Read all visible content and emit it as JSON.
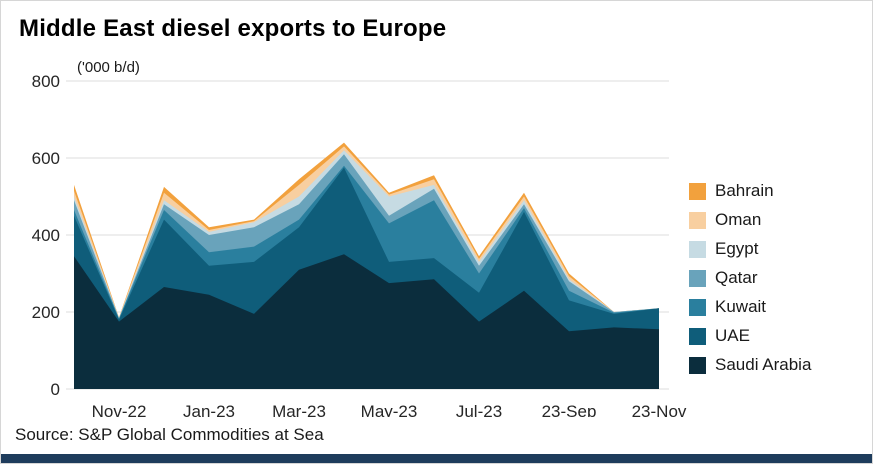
{
  "page": {
    "title": "Middle East diesel exports to Europe",
    "unit_label": "('000 b/d)",
    "source": "Source: S&P Global Commodities at Sea"
  },
  "colors": {
    "footer_bar": "#1e3c5c",
    "gridline": "#dcdcdc",
    "background": "#ffffff"
  },
  "chart_data": {
    "type": "area",
    "stacked": true,
    "title": "Middle East diesel exports to Europe",
    "ylabel": "('000 b/d)",
    "ylim": [
      0,
      800
    ],
    "yticks": [
      0,
      200,
      400,
      600,
      800
    ],
    "grid": true,
    "legend_position": "right",
    "x": [
      "Oct-22",
      "Nov-22",
      "Dec-22",
      "Jan-23",
      "Feb-23",
      "Mar-23",
      "Apr-23",
      "May-23",
      "Jun-23",
      "Jul-23",
      "Aug-23",
      "23-Sep",
      "23-Oct",
      "23-Nov"
    ],
    "x_tick_indices": [
      1,
      3,
      5,
      7,
      9,
      11,
      13
    ],
    "x_tick_labels": [
      "Nov-22",
      "Jan-23",
      "Mar-23",
      "May-23",
      "Jul-23",
      "23-Sep",
      "23-Nov"
    ],
    "series": [
      {
        "name": "Saudi Arabia",
        "color": "#0b2d3d",
        "values": [
          345,
          175,
          265,
          245,
          195,
          310,
          350,
          275,
          285,
          175,
          255,
          150,
          160,
          155
        ]
      },
      {
        "name": "UAE",
        "color": "#0f5d7a",
        "values": [
          105,
          5,
          175,
          75,
          135,
          110,
          225,
          55,
          55,
          75,
          205,
          80,
          35,
          55
        ]
      },
      {
        "name": "Kuwait",
        "color": "#2a7f9e",
        "values": [
          15,
          3,
          25,
          35,
          40,
          20,
          5,
          100,
          150,
          50,
          10,
          25,
          3,
          0
        ]
      },
      {
        "name": "Qatar",
        "color": "#69a3bb",
        "values": [
          25,
          1,
          15,
          45,
          50,
          40,
          30,
          20,
          30,
          20,
          10,
          25,
          2,
          0
        ]
      },
      {
        "name": "Egypt",
        "color": "#c6dbe3",
        "values": [
          10,
          1,
          10,
          8,
          13,
          20,
          10,
          50,
          10,
          10,
          10,
          5,
          0,
          0
        ]
      },
      {
        "name": "Oman",
        "color": "#f8cfa0",
        "values": [
          15,
          0,
          20,
          5,
          3,
          30,
          10,
          5,
          15,
          8,
          10,
          8,
          0,
          0
        ]
      },
      {
        "name": "Bahrain",
        "color": "#f2a13d",
        "values": [
          15,
          1,
          15,
          7,
          4,
          15,
          10,
          5,
          10,
          7,
          10,
          7,
          0,
          0
        ]
      }
    ],
    "legend_order": [
      "Bahrain",
      "Oman",
      "Egypt",
      "Qatar",
      "Kuwait",
      "UAE",
      "Saudi Arabia"
    ]
  }
}
